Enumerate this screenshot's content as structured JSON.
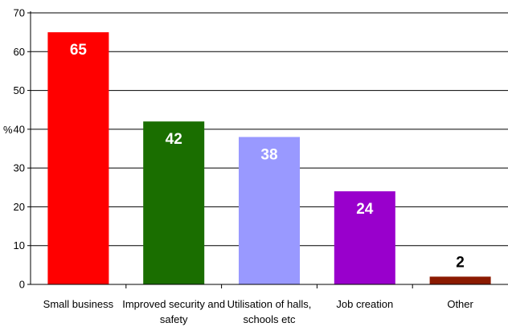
{
  "chart_data": {
    "type": "bar",
    "ylabel": "%",
    "xlabel": "",
    "ylim": [
      0,
      70
    ],
    "yticks": [
      0,
      10,
      20,
      30,
      40,
      50,
      60,
      70
    ],
    "grid": true,
    "legend": "none",
    "categories": [
      "Small business",
      "Improved security and safety",
      "Utilisation of halls, schools etc",
      "Job creation",
      "Other"
    ],
    "category_lines": [
      [
        "Small business"
      ],
      [
        "Improved security and",
        "safety"
      ],
      [
        "Utilisation of halls,",
        "schools etc"
      ],
      [
        "Job creation"
      ],
      [
        "Other"
      ]
    ],
    "values": [
      65,
      42,
      38,
      24,
      2
    ],
    "data_labels": [
      "65",
      "42",
      "38",
      "24",
      "2"
    ],
    "colors": [
      "#ff0000",
      "#1a6e00",
      "#9999ff",
      "#9900cc",
      "#8b1a00"
    ],
    "label_colors": [
      "#ffffff",
      "#ffffff",
      "#ffffff",
      "#ffffff",
      "#000000"
    ]
  }
}
